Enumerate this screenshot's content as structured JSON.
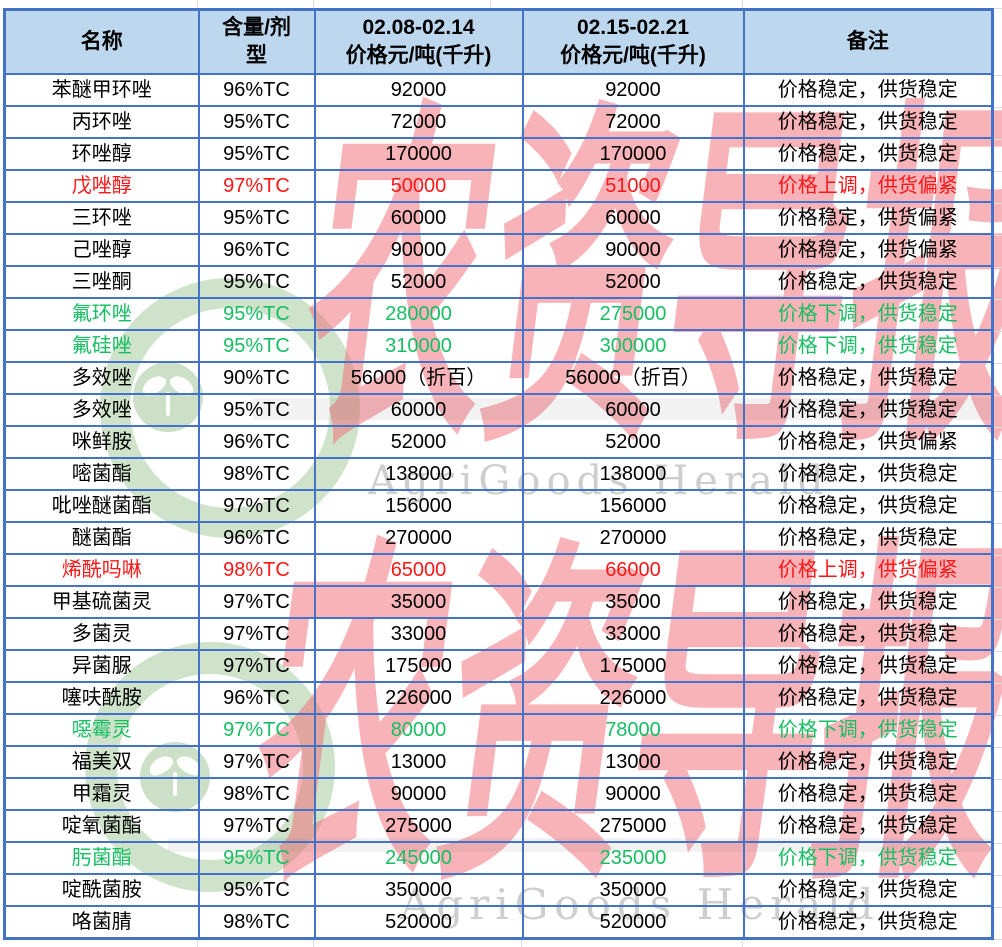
{
  "page": {
    "background": "#FFFFFF"
  },
  "colors": {
    "table_border": "#4472C4",
    "header_bg": "#BDD7EE",
    "trend_stable": "#000000",
    "trend_up": "#FB1717",
    "trend_down": "#17BE62",
    "watermark_red": "#F16872",
    "watermark_green": "#A8CCA0",
    "watermark_gray": "#A5A5A5"
  },
  "watermark": {
    "brand_cn": "农资导报",
    "brand_en": "AgriGoods Herald",
    "logo": "sprout-circle-logo"
  },
  "table": {
    "columns": [
      {
        "label": "名称"
      },
      {
        "line1": "含量/剂",
        "line2": "型"
      },
      {
        "line1": "02.08-02.14",
        "line2": "价格元/吨(千升)"
      },
      {
        "line1": "02.15-02.21",
        "line2": "价格元/吨(千升)"
      },
      {
        "label": "备注"
      }
    ],
    "rows": [
      {
        "name": "苯醚甲环唑",
        "spec": "96%TC",
        "p1": "92000",
        "p2": "92000",
        "remark": "价格稳定，供货稳定",
        "trend": "stable"
      },
      {
        "name": "丙环唑",
        "spec": "95%TC",
        "p1": "72000",
        "p2": "72000",
        "remark": "价格稳定，供货稳定",
        "trend": "stable"
      },
      {
        "name": "环唑醇",
        "spec": "95%TC",
        "p1": "170000",
        "p2": "170000",
        "remark": "价格稳定，供货稳定",
        "trend": "stable"
      },
      {
        "name": "戊唑醇",
        "spec": "97%TC",
        "p1": "50000",
        "p2": "51000",
        "remark": "价格上调，供货偏紧",
        "trend": "up"
      },
      {
        "name": "三环唑",
        "spec": "95%TC",
        "p1": "60000",
        "p2": "60000",
        "remark": "价格稳定，供货偏紧",
        "trend": "stable"
      },
      {
        "name": "己唑醇",
        "spec": "96%TC",
        "p1": "90000",
        "p2": "90000",
        "remark": "价格稳定，供货偏紧",
        "trend": "stable"
      },
      {
        "name": "三唑酮",
        "spec": "95%TC",
        "p1": "52000",
        "p2": "52000",
        "remark": "价格稳定，供货稳定",
        "trend": "stable"
      },
      {
        "name": "氟环唑",
        "spec": "95%TC",
        "p1": "280000",
        "p2": "275000",
        "remark": "价格下调，供货稳定",
        "trend": "down"
      },
      {
        "name": "氟硅唑",
        "spec": "95%TC",
        "p1": "310000",
        "p2": "300000",
        "remark": "价格下调，供货稳定",
        "trend": "down"
      },
      {
        "name": "多效唑",
        "spec": "90%TC",
        "p1": "56000（折百）",
        "p2": "56000（折百）",
        "remark": "价格稳定，供货稳定",
        "trend": "stable"
      },
      {
        "name": "多效唑",
        "spec": "95%TC",
        "p1": "60000",
        "p2": "60000",
        "remark": "价格稳定，供货稳定",
        "trend": "stable"
      },
      {
        "name": "咪鲜胺",
        "spec": "96%TC",
        "p1": "52000",
        "p2": "52000",
        "remark": "价格稳定，供货偏紧",
        "trend": "stable"
      },
      {
        "name": "嘧菌酯",
        "spec": "98%TC",
        "p1": "138000",
        "p2": "138000",
        "remark": "价格稳定，供货稳定",
        "trend": "stable"
      },
      {
        "name": "吡唑醚菌酯",
        "spec": "97%TC",
        "p1": "156000",
        "p2": "156000",
        "remark": "价格稳定，供货稳定",
        "trend": "stable"
      },
      {
        "name": "醚菌酯",
        "spec": "96%TC",
        "p1": "270000",
        "p2": "270000",
        "remark": "价格稳定，供货稳定",
        "trend": "stable"
      },
      {
        "name": "烯酰吗啉",
        "spec": "98%TC",
        "p1": "65000",
        "p2": "66000",
        "remark": "价格上调，供货偏紧",
        "trend": "up"
      },
      {
        "name": "甲基硫菌灵",
        "spec": "97%TC",
        "p1": "35000",
        "p2": "35000",
        "remark": "价格稳定，供货稳定",
        "trend": "stable"
      },
      {
        "name": "多菌灵",
        "spec": "97%TC",
        "p1": "33000",
        "p2": "33000",
        "remark": "价格稳定，供货稳定",
        "trend": "stable"
      },
      {
        "name": "异菌脲",
        "spec": "97%TC",
        "p1": "175000",
        "p2": "175000",
        "remark": "价格稳定，供货稳定",
        "trend": "stable"
      },
      {
        "name": "噻呋酰胺",
        "spec": "96%TC",
        "p1": "226000",
        "p2": "226000",
        "remark": "价格稳定，供货稳定",
        "trend": "stable"
      },
      {
        "name": "噁霉灵",
        "spec": "97%TC",
        "p1": "80000",
        "p2": "78000",
        "remark": "价格下调，供货稳定",
        "trend": "down"
      },
      {
        "name": "福美双",
        "spec": "97%TC",
        "p1": "13000",
        "p2": "13000",
        "remark": "价格稳定，供货稳定",
        "trend": "stable"
      },
      {
        "name": "甲霜灵",
        "spec": "98%TC",
        "p1": "90000",
        "p2": "90000",
        "remark": "价格稳定，供货稳定",
        "trend": "stable"
      },
      {
        "name": "啶氧菌酯",
        "spec": "97%TC",
        "p1": "275000",
        "p2": "275000",
        "remark": "价格稳定，供货稳定",
        "trend": "stable"
      },
      {
        "name": "肟菌酯",
        "spec": "95%TC",
        "p1": "245000",
        "p2": "235000",
        "remark": "价格下调，供货稳定",
        "trend": "down"
      },
      {
        "name": "啶酰菌胺",
        "spec": "95%TC",
        "p1": "350000",
        "p2": "350000",
        "remark": "价格稳定，供货稳定",
        "trend": "stable"
      },
      {
        "name": "咯菌腈",
        "spec": "98%TC",
        "p1": "520000",
        "p2": "520000",
        "remark": "价格稳定，供货稳定",
        "trend": "stable"
      }
    ]
  }
}
